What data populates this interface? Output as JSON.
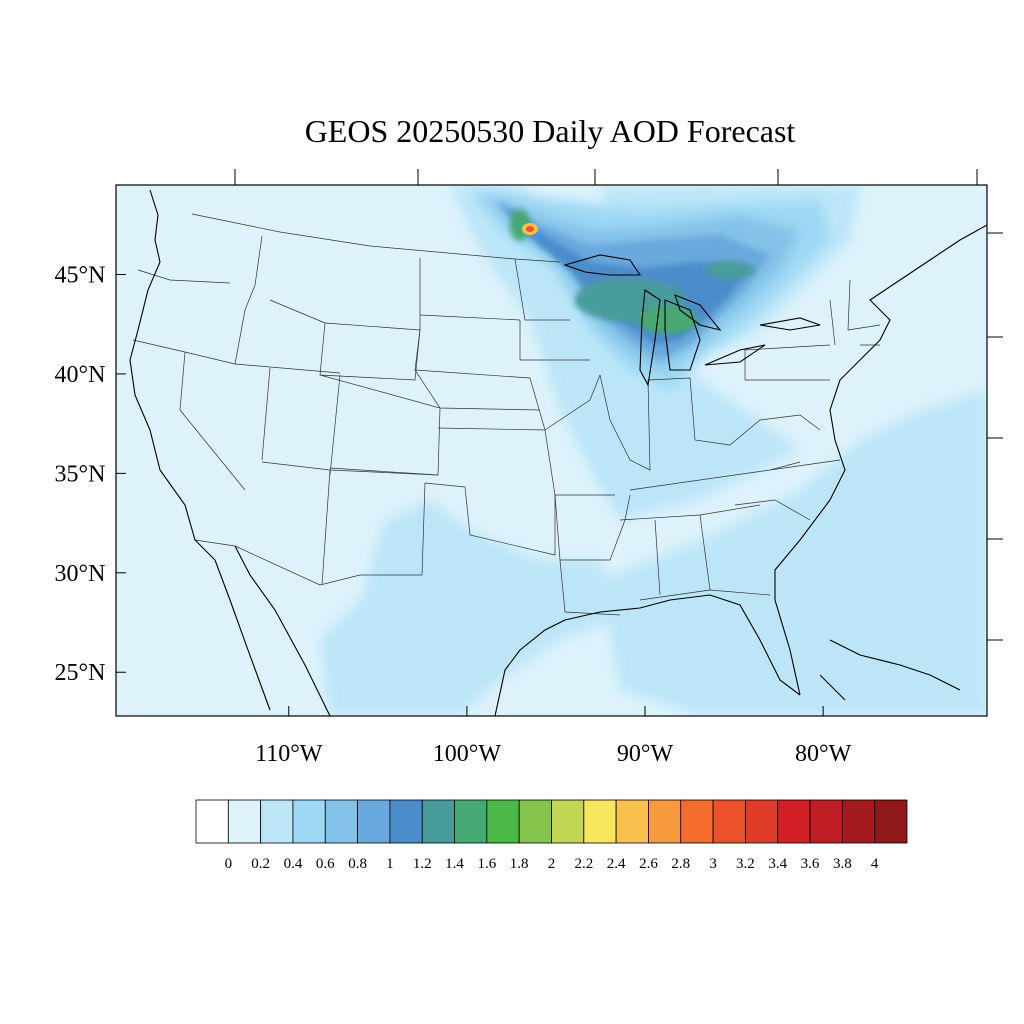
{
  "title": "GEOS 20250530 Daily AOD Forecast",
  "map": {
    "lon_range": [
      -119.7,
      -70.8
    ],
    "lat_range": [
      22.8,
      49.5
    ],
    "lat_ticks": [
      {
        "value": 45,
        "label": "45°N"
      },
      {
        "value": 40,
        "label": "40°N"
      },
      {
        "value": 35,
        "label": "35°N"
      },
      {
        "value": 30,
        "label": "30°N"
      },
      {
        "value": 25,
        "label": "25°N"
      }
    ],
    "lon_ticks": [
      {
        "value": -110,
        "label": "110°W"
      },
      {
        "value": -100,
        "label": "100°W"
      },
      {
        "value": -90,
        "label": "90°W"
      },
      {
        "value": -80,
        "label": "80°W"
      }
    ],
    "background_color": "#ddf2fb"
  },
  "colorbar": {
    "labels": [
      "0",
      "0.2",
      "0.4",
      "0.6",
      "0.8",
      "1",
      "1.2",
      "1.4",
      "1.6",
      "1.8",
      "2",
      "2.2",
      "2.4",
      "2.6",
      "2.8",
      "3",
      "3.2",
      "3.4",
      "3.6",
      "3.8",
      "4"
    ],
    "colors": [
      "#ffffff",
      "#ddf2fb",
      "#bce6f8",
      "#9dd8f4",
      "#84c1e8",
      "#69a9dd",
      "#4b8ccb",
      "#489c9c",
      "#46a872",
      "#4cb848",
      "#86c54d",
      "#c3d656",
      "#f7e65e",
      "#f9c04d",
      "#f79a3f",
      "#f46c2e",
      "#ec512b",
      "#e03a28",
      "#d32027",
      "#bf1e24",
      "#a51a1f",
      "#90181b"
    ]
  }
}
